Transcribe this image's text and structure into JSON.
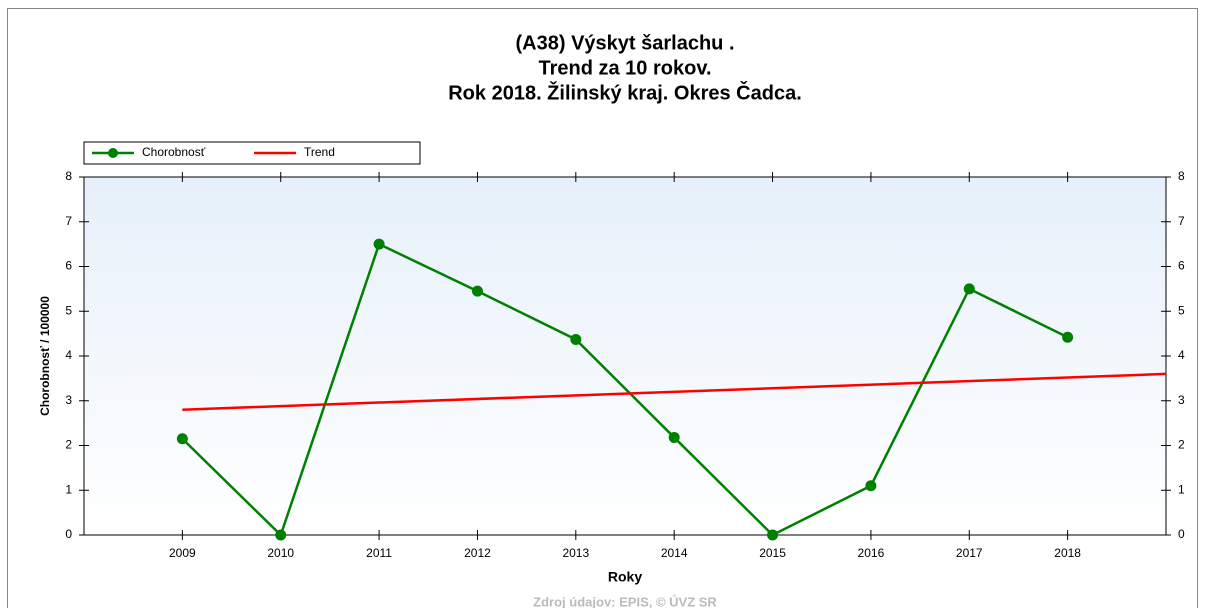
{
  "chart_data": {
    "type": "line",
    "title": [
      "(A38) Výskyt šarlachu .",
      "Trend za 10 rokov.",
      "Rok 2018. Žilinský kraj. Okres Čadca."
    ],
    "xlabel": "Roky",
    "ylabel": "Chorobnosť / 100000",
    "source": "Zdroj údajov: EPIS, © ÚVZ SR",
    "x": [
      2009,
      2010,
      2011,
      2012,
      2013,
      2014,
      2015,
      2016,
      2017,
      2018
    ],
    "series": [
      {
        "name": "Chorobnosť",
        "color": "#008000",
        "values": [
          2.15,
          0,
          6.5,
          5.45,
          4.37,
          2.18,
          0,
          1.1,
          5.5,
          4.42
        ]
      },
      {
        "name": "Trend",
        "color": "#ff0000",
        "x": [
          2009,
          2019
        ],
        "values": [
          2.8,
          3.6
        ]
      }
    ],
    "xlim": [
      2008,
      2019
    ],
    "xticks": [
      2009,
      2010,
      2011,
      2012,
      2013,
      2014,
      2015,
      2016,
      2017,
      2018
    ],
    "ylim": [
      0,
      8
    ],
    "yticks": [
      0,
      1,
      2,
      3,
      4,
      5,
      6,
      7,
      8
    ],
    "y2lim": [
      0,
      8
    ],
    "y2ticks": [
      0,
      1,
      2,
      3,
      4,
      5,
      6,
      7,
      8
    ],
    "grid": false,
    "legend": "upper left"
  }
}
